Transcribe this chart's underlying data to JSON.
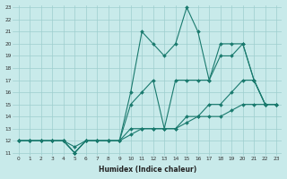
{
  "xlabel": "Humidex (Indice chaleur)",
  "x": [
    0,
    1,
    2,
    3,
    4,
    5,
    6,
    7,
    8,
    9,
    10,
    11,
    12,
    13,
    14,
    15,
    16,
    17,
    18,
    19,
    20,
    21,
    22,
    23
  ],
  "line1": [
    12,
    12,
    12,
    12,
    12,
    11,
    12,
    12,
    12,
    12,
    16,
    21,
    20,
    19,
    20,
    23,
    21,
    17,
    20,
    20,
    20,
    17,
    15,
    15
  ],
  "line2": [
    12,
    12,
    12,
    12,
    12,
    11,
    12,
    12,
    12,
    12,
    15,
    16,
    17,
    13,
    17,
    17,
    17,
    17,
    19,
    19,
    20,
    17,
    15,
    15
  ],
  "line3": [
    12,
    12,
    12,
    12,
    12,
    11,
    12,
    12,
    12,
    12,
    13,
    13,
    13,
    13,
    13,
    14,
    14,
    15,
    15,
    16,
    17,
    17,
    15,
    15
  ],
  "line4": [
    12,
    12,
    12,
    12,
    12,
    11.5,
    12,
    12,
    12,
    12,
    12.5,
    13,
    13,
    13,
    13,
    13.5,
    14,
    14,
    14,
    14.5,
    15,
    15,
    15,
    15
  ],
  "color": "#1a7a6e",
  "bg_color": "#c8eaea",
  "grid_color": "#9ecece",
  "ylim": [
    11,
    23
  ],
  "xlim": [
    -0.5,
    23.5
  ]
}
